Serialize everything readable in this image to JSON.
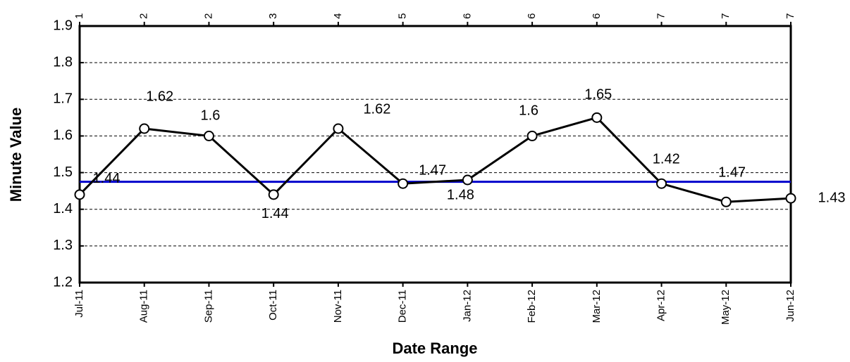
{
  "chart_data": {
    "type": "line",
    "x_label": "Date Range",
    "y_label": "Minute Value",
    "categories": [
      "Jul-11",
      "Aug-11",
      "Sep-11",
      "Oct-11",
      "Nov-11",
      "Dec-11",
      "Jan-12",
      "Feb-12",
      "Mar-12",
      "Apr-12",
      "May-12",
      "Jun-12"
    ],
    "top_labels": [
      1,
      2,
      2,
      3,
      4,
      5,
      6,
      6,
      6,
      7,
      7,
      7
    ],
    "series": [
      {
        "color": "#000000",
        "values": [
          1.44,
          1.62,
          1.6,
          1.44,
          1.62,
          1.47,
          1.48,
          1.6,
          1.65,
          1.47,
          1.42,
          1.43
        ]
      }
    ],
    "reference_line": {
      "value": 1.475,
      "color": "#0000cc"
    },
    "ylim": [
      1.2,
      1.9
    ],
    "yticks": [
      1.2,
      1.3,
      1.4,
      1.5,
      1.6,
      1.7,
      1.8,
      1.9
    ],
    "grid": true
  }
}
